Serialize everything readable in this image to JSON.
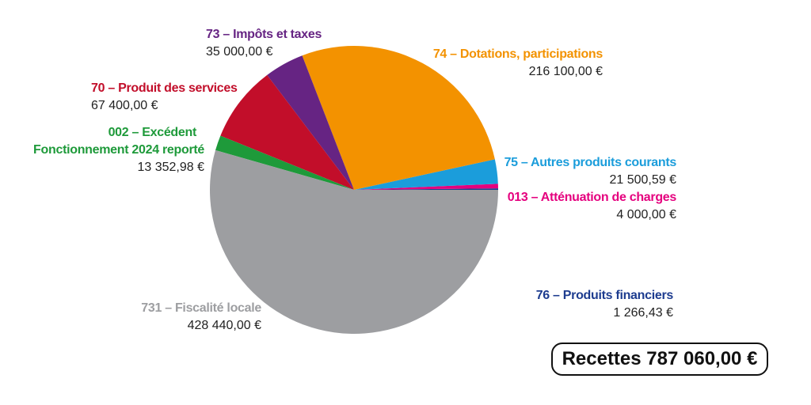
{
  "chart_data": {
    "type": "pie",
    "title": "",
    "start_angle_deg": 0,
    "direction": "counterclockwise",
    "slices": [
      {
        "label": "76 – Produits financiers",
        "value": 1266.43,
        "value_text": "1 266,43 €",
        "color": "#1d3c8f"
      },
      {
        "label": "013 – Atténuation de charges",
        "value": 4000.0,
        "value_text": "4 000,00 €",
        "color": "#e5007e"
      },
      {
        "label": "75 – Autres produits courants",
        "value": 21500.59,
        "value_text": "21 500,59 €",
        "color": "#1b9ddb"
      },
      {
        "label": "74 – Dotations, participations",
        "value": 216100.0,
        "value_text": "216 100,00 €",
        "color": "#f39200"
      },
      {
        "label": "73 – Impôts et taxes",
        "value": 35000.0,
        "value_text": "35 000,00 €",
        "color": "#662483"
      },
      {
        "label": "70 – Produit des services",
        "value": 67400.0,
        "value_text": "67 400,00 €",
        "color": "#c20e2a"
      },
      {
        "label_line1": "002 – Excédent",
        "label": "Fonctionnement 2024 reporté",
        "value": 13352.98,
        "value_text": "13 352,98 €",
        "color": "#1e9a3a"
      },
      {
        "label": "731 – Fiscalité locale",
        "value": 428440.0,
        "value_text": "428 440,00 €",
        "color": "#9d9ea1"
      }
    ],
    "total_text": "Recettes 787 060,00 €"
  }
}
